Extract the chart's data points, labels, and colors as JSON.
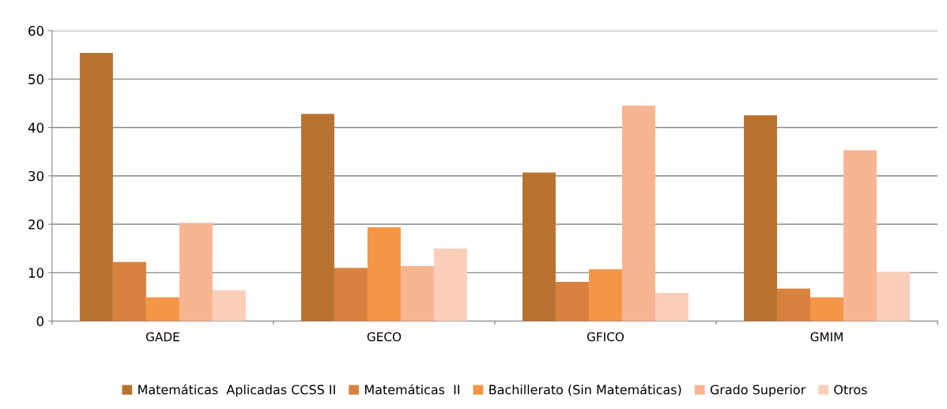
{
  "chart_data": {
    "type": "bar",
    "categories": [
      "GADE",
      "GECO",
      "GFICO",
      "GMIM"
    ],
    "series": [
      {
        "name": "Matemáticas  Aplicadas CCSS II",
        "color": "#b87333",
        "values": [
          55.4,
          42.8,
          30.7,
          42.5
        ]
      },
      {
        "name": "Matemáticas  II",
        "color": "#d9823f",
        "values": [
          12.2,
          11.0,
          8.1,
          6.7
        ]
      },
      {
        "name": "Bachillerato (Sin Matemáticas)",
        "color": "#f59647",
        "values": [
          4.9,
          19.4,
          10.7,
          4.9
        ]
      },
      {
        "name": "Grado Superior",
        "color": "#f8b592",
        "values": [
          20.3,
          11.4,
          44.5,
          35.3
        ]
      },
      {
        "name": "Otros",
        "color": "#fbcfb9",
        "values": [
          6.4,
          15.0,
          5.8,
          10.1
        ]
      }
    ],
    "ylim": [
      0,
      60
    ],
    "yticks": [
      0,
      10,
      20,
      30,
      40,
      50,
      60
    ],
    "grid": "y",
    "legend": "bottom"
  }
}
